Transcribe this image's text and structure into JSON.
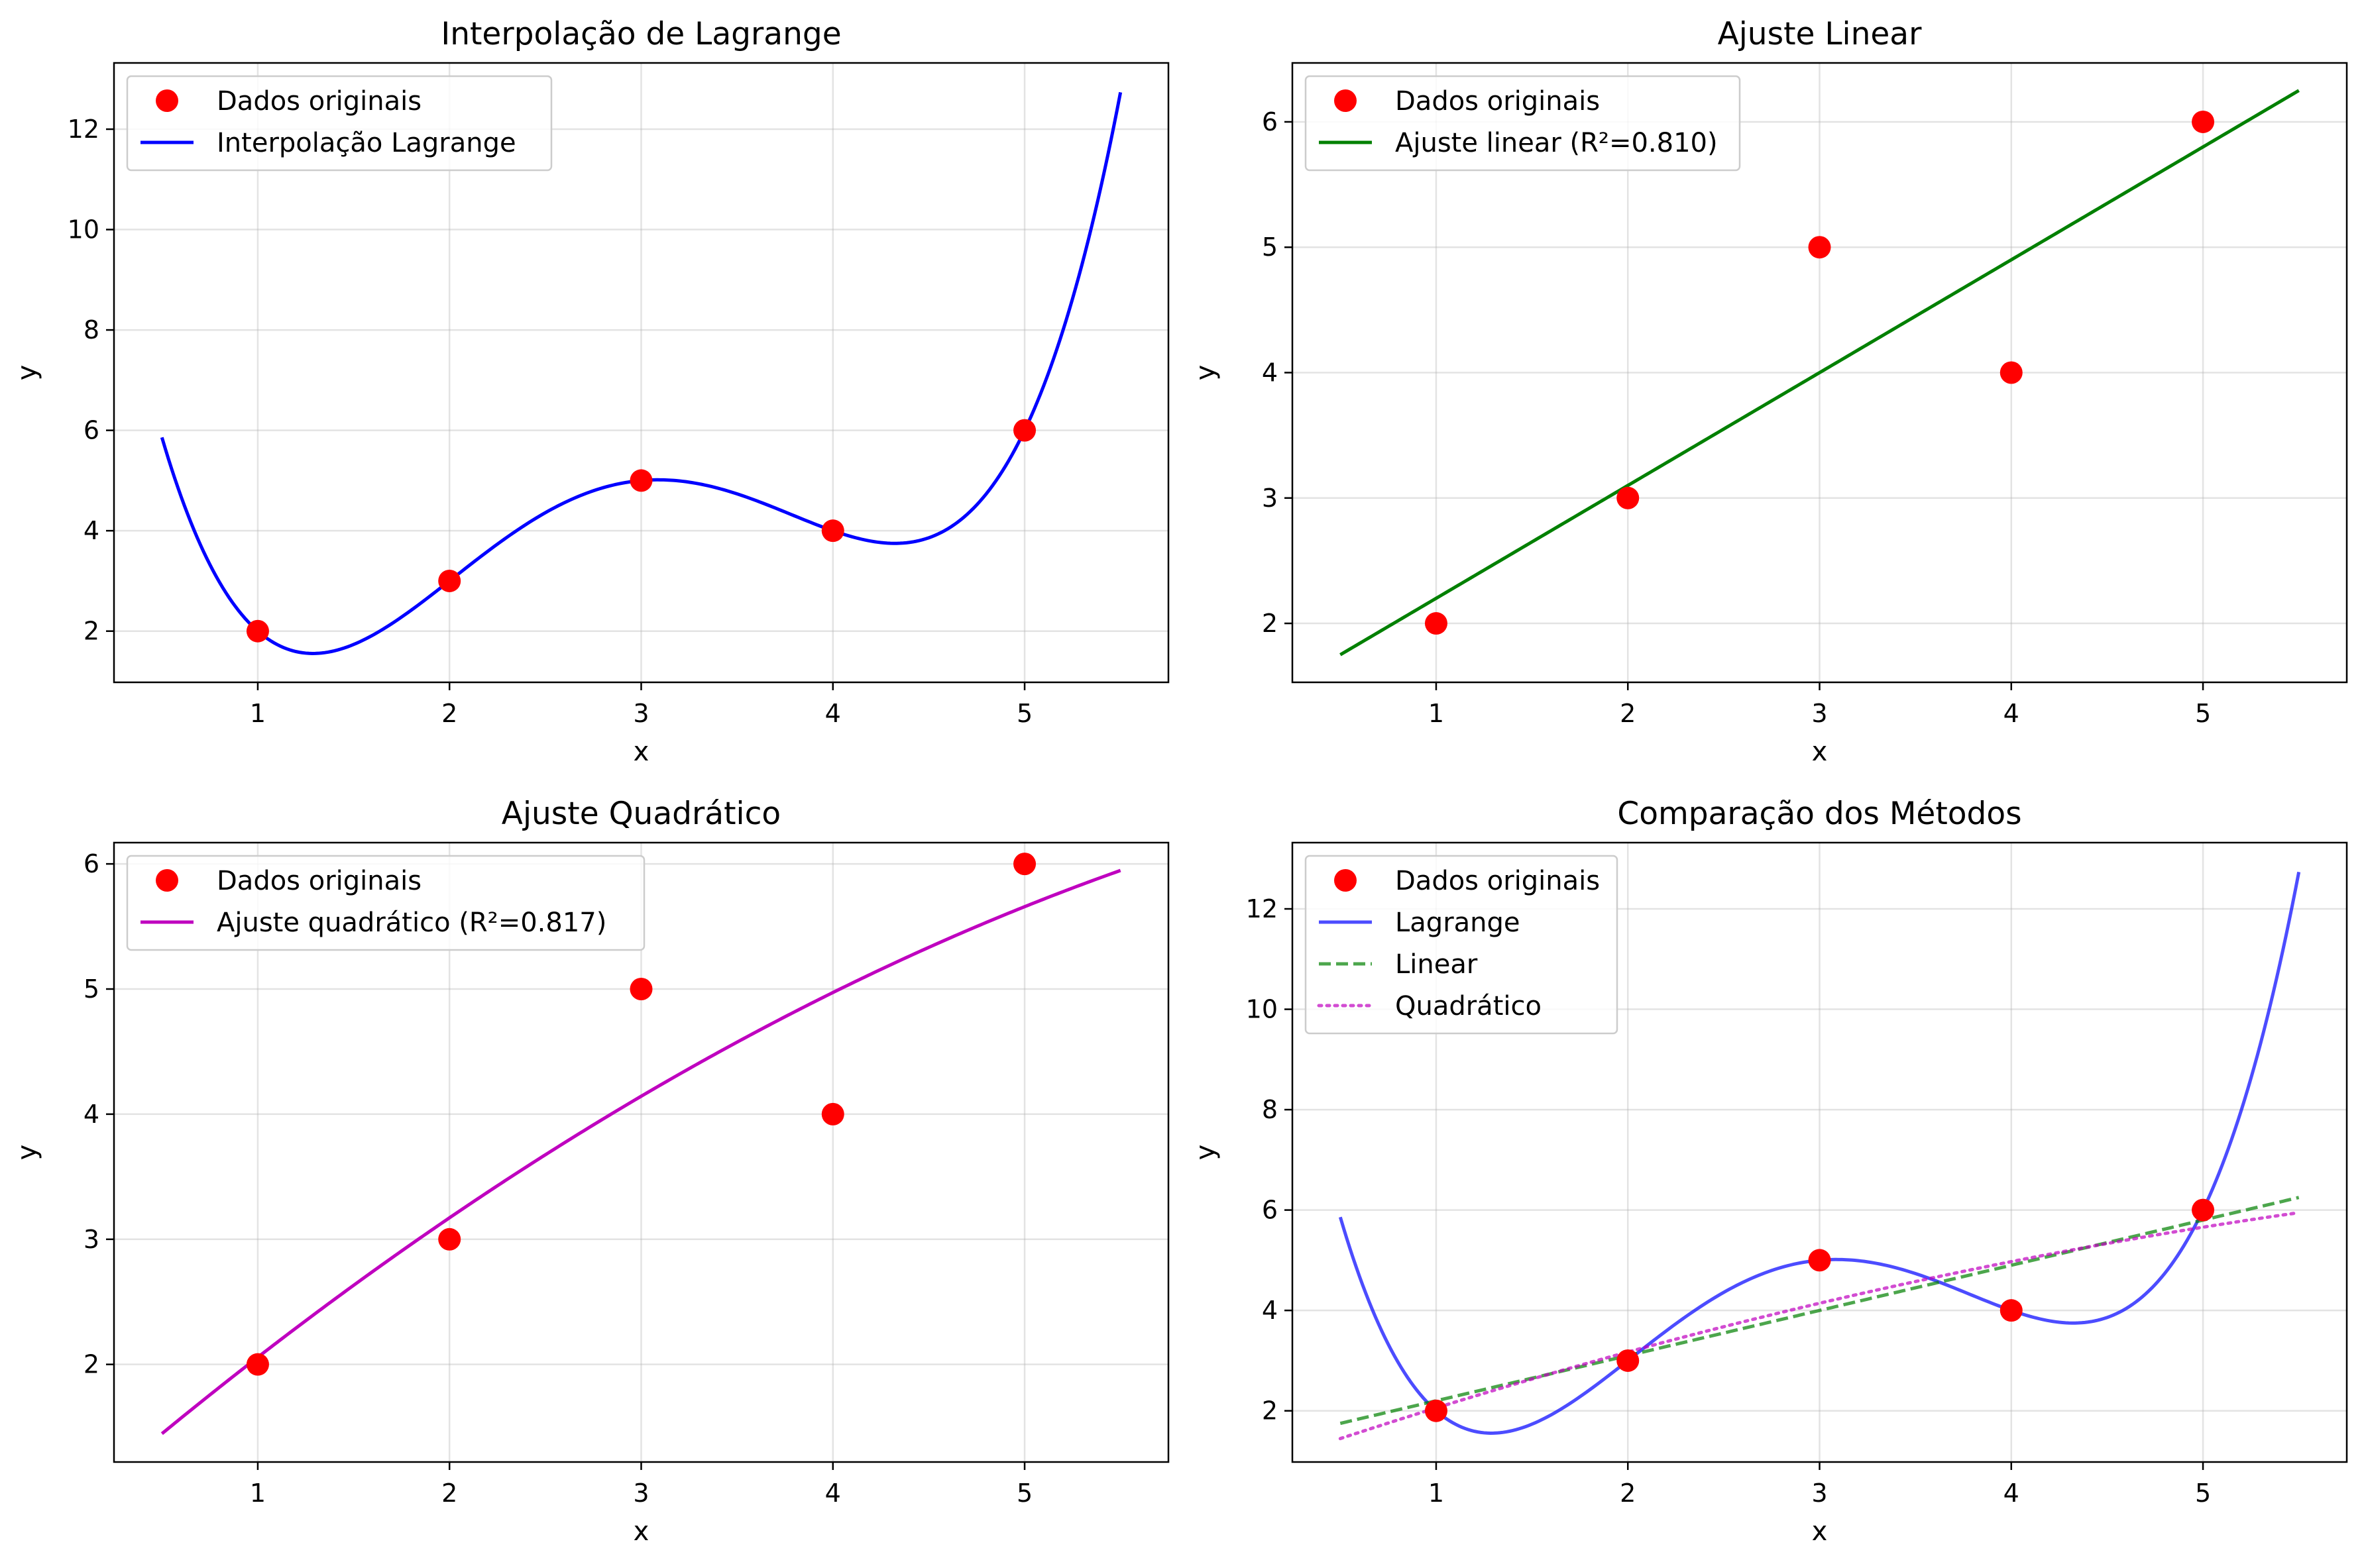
{
  "chart_data": [
    {
      "id": "lagrange",
      "type": "line",
      "title": "Interpolação de Lagrange",
      "xlabel": "x",
      "ylabel": "y",
      "xlim": [
        0.25,
        5.75
      ],
      "ylim": [
        0.98,
        13.32
      ],
      "xticks": [
        1,
        2,
        3,
        4,
        5
      ],
      "yticks": [
        2,
        4,
        6,
        8,
        10,
        12
      ],
      "grid": true,
      "legend": "top-left",
      "points": {
        "name": "Dados originais",
        "color": "#ff0000",
        "x": [
          1,
          2,
          3,
          4,
          5
        ],
        "y": [
          2,
          3,
          5,
          4,
          6
        ]
      },
      "series": [
        {
          "name": "Interpolação Lagrange",
          "kind": "lagrange",
          "color": "#0000ff",
          "style": "solid",
          "alpha": 1,
          "x_range": [
            0.5,
            5.5
          ]
        }
      ]
    },
    {
      "id": "linear",
      "type": "line",
      "title": "Ajuste Linear",
      "xlabel": "x",
      "ylabel": "y",
      "xlim": [
        0.25,
        5.75
      ],
      "ylim": [
        1.53,
        6.47
      ],
      "xticks": [
        1,
        2,
        3,
        4,
        5
      ],
      "yticks": [
        2,
        3,
        4,
        5,
        6
      ],
      "grid": true,
      "legend": "top-left",
      "points": {
        "name": "Dados originais",
        "color": "#ff0000",
        "x": [
          1,
          2,
          3,
          4,
          5
        ],
        "y": [
          2,
          3,
          5,
          4,
          6
        ]
      },
      "series": [
        {
          "name": "Ajuste linear (R²=0.810)",
          "kind": "poly",
          "coefficients": [
            1.3,
            0.9
          ],
          "color": "#008000",
          "style": "solid",
          "alpha": 1,
          "x_range": [
            0.5,
            5.5
          ]
        }
      ]
    },
    {
      "id": "quadratic",
      "type": "line",
      "title": "Ajuste Quadrático",
      "xlabel": "x",
      "ylabel": "y",
      "xlim": [
        0.25,
        5.75
      ],
      "ylim": [
        1.22,
        6.17
      ],
      "xticks": [
        1,
        2,
        3,
        4,
        5
      ],
      "yticks": [
        2,
        3,
        4,
        5,
        6
      ],
      "grid": true,
      "legend": "top-left",
      "points": {
        "name": "Dados originais",
        "color": "#ff0000",
        "x": [
          1,
          2,
          3,
          4,
          5
        ],
        "y": [
          2,
          3,
          5,
          4,
          6
        ]
      },
      "series": [
        {
          "name": "Ajuste quadrático (R²=0.817)",
          "kind": "poly",
          "coefficients": [
            0.8,
            1.3286,
            -0.0714
          ],
          "color": "#bf00bf",
          "style": "solid",
          "alpha": 1,
          "x_range": [
            0.5,
            5.5
          ]
        }
      ]
    },
    {
      "id": "comparison",
      "type": "line",
      "title": "Comparação dos Métodos",
      "xlabel": "x",
      "ylabel": "y",
      "xlim": [
        0.25,
        5.75
      ],
      "ylim": [
        0.98,
        13.32
      ],
      "xticks": [
        1,
        2,
        3,
        4,
        5
      ],
      "yticks": [
        2,
        4,
        6,
        8,
        10,
        12
      ],
      "grid": true,
      "legend": "top-left",
      "points": {
        "name": "Dados originais",
        "color": "#ff0000",
        "x": [
          1,
          2,
          3,
          4,
          5
        ],
        "y": [
          2,
          3,
          5,
          4,
          6
        ]
      },
      "series": [
        {
          "name": "Lagrange",
          "kind": "lagrange",
          "color": "#0000ff",
          "style": "solid",
          "alpha": 0.7,
          "x_range": [
            0.5,
            5.5
          ]
        },
        {
          "name": "Linear",
          "kind": "poly",
          "coefficients": [
            1.3,
            0.9
          ],
          "color": "#008000",
          "style": "dashed",
          "alpha": 0.7,
          "x_range": [
            0.5,
            5.5
          ]
        },
        {
          "name": "Quadrático",
          "kind": "poly",
          "coefficients": [
            0.8,
            1.3286,
            -0.0714
          ],
          "color": "#bf00bf",
          "style": "dotted",
          "alpha": 0.7,
          "x_range": [
            0.5,
            5.5
          ]
        }
      ]
    }
  ]
}
